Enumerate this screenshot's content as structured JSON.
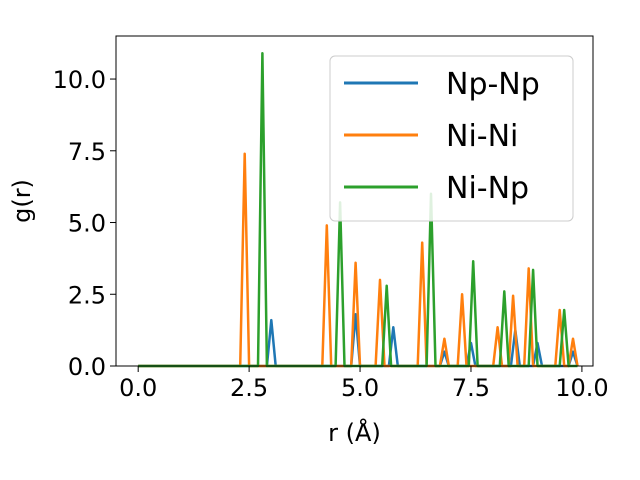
{
  "chart_data": {
    "type": "line",
    "xlabel": "r (Å)",
    "ylabel": "g(r)",
    "xlim": [
      -0.5,
      10.25
    ],
    "ylim": [
      0,
      11.5
    ],
    "xticks": [
      0.0,
      2.5,
      5.0,
      7.5,
      10.0
    ],
    "xtick_labels": [
      "0.0",
      "2.5",
      "5.0",
      "7.5",
      "10.0"
    ],
    "yticks": [
      0.0,
      2.5,
      5.0,
      7.5,
      10.0
    ],
    "ytick_labels": [
      "0.0",
      "2.5",
      "5.0",
      "7.5",
      "10.0"
    ],
    "grid": false,
    "legend_position": "top-right",
    "series": [
      {
        "name": "Np-Np",
        "color": "#1f77b4",
        "peaks": [
          [
            3.0,
            1.6
          ],
          [
            4.9,
            1.8
          ],
          [
            5.75,
            1.35
          ],
          [
            6.9,
            0.5
          ],
          [
            7.5,
            0.8
          ],
          [
            8.5,
            1.25
          ],
          [
            9.0,
            0.8
          ],
          [
            9.8,
            0.5
          ]
        ]
      },
      {
        "name": "Ni-Ni",
        "color": "#ff7f0e",
        "peaks": [
          [
            2.4,
            7.4
          ],
          [
            4.25,
            4.9
          ],
          [
            4.9,
            3.6
          ],
          [
            5.45,
            3.0
          ],
          [
            6.4,
            4.3
          ],
          [
            6.9,
            0.95
          ],
          [
            7.3,
            2.5
          ],
          [
            8.1,
            1.35
          ],
          [
            8.45,
            2.45
          ],
          [
            8.8,
            3.4
          ],
          [
            9.5,
            1.95
          ],
          [
            9.8,
            0.95
          ]
        ]
      },
      {
        "name": "Ni-Np",
        "color": "#2ca02c",
        "peaks": [
          [
            2.8,
            10.9
          ],
          [
            4.55,
            5.7
          ],
          [
            5.6,
            2.8
          ],
          [
            6.6,
            6.0
          ],
          [
            7.55,
            3.65
          ],
          [
            8.25,
            2.6
          ],
          [
            8.9,
            3.35
          ],
          [
            9.6,
            1.95
          ]
        ]
      }
    ]
  }
}
